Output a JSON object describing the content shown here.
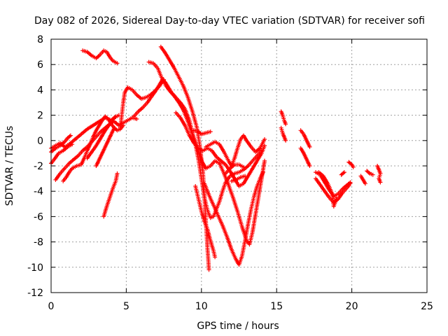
{
  "chart_data": {
    "type": "scatter",
    "title": "Day 082 of 2026, Sidereal Day-to-day VTEC variation (SDTVAR) for receiver sofi",
    "xlabel": "GPS time / hours",
    "ylabel": "SDTVAR / TECUs",
    "xlim": [
      0,
      25
    ],
    "ylim": [
      -12,
      8
    ],
    "xticks": [
      0,
      5,
      10,
      15,
      20,
      25
    ],
    "yticks": [
      -12,
      -10,
      -8,
      -6,
      -4,
      -2,
      0,
      2,
      4,
      6,
      8
    ],
    "xtick_labels": [
      "0",
      "5",
      "10",
      "15",
      "20",
      "25"
    ],
    "ytick_labels": [
      "-12",
      "-10",
      "-8",
      "-6",
      "-4",
      "-2",
      "0",
      "2",
      "4",
      "6",
      "8"
    ],
    "grid": true,
    "marker": "plus",
    "color": "#ff0000",
    "tracks": [
      [
        [
          0.0,
          -0.6
        ],
        [
          0.3,
          -0.4
        ],
        [
          0.6,
          -0.2
        ],
        [
          0.9,
          -0.5
        ],
        [
          1.2,
          -0.3
        ],
        [
          1.5,
          0.0
        ],
        [
          1.8,
          0.3
        ],
        [
          2.1,
          0.6
        ],
        [
          2.4,
          0.9
        ],
        [
          2.8,
          1.2
        ],
        [
          3.2,
          1.5
        ],
        [
          3.6,
          1.8
        ],
        [
          4.0,
          1.6
        ],
        [
          4.3,
          1.9
        ]
      ],
      [
        [
          0.0,
          -0.9
        ],
        [
          0.3,
          -0.6
        ],
        [
          0.6,
          -0.4
        ],
        [
          0.9,
          -0.1
        ],
        [
          1.1,
          0.2
        ],
        [
          1.3,
          0.4
        ]
      ],
      [
        [
          0.0,
          -1.8
        ],
        [
          0.2,
          -1.5
        ],
        [
          0.5,
          -1.0
        ],
        [
          0.8,
          -0.8
        ],
        [
          1.1,
          -0.5
        ],
        [
          1.4,
          -0.3
        ]
      ],
      [
        [
          0.3,
          -3.1
        ],
        [
          0.6,
          -2.6
        ],
        [
          0.9,
          -2.2
        ],
        [
          1.2,
          -1.8
        ],
        [
          1.5,
          -1.5
        ],
        [
          1.8,
          -1.2
        ],
        [
          2.1,
          -0.8
        ],
        [
          2.4,
          -0.5
        ],
        [
          2.7,
          -0.1
        ],
        [
          3.0,
          0.3
        ],
        [
          3.3,
          0.7
        ],
        [
          3.6,
          1.0
        ],
        [
          3.9,
          1.3
        ],
        [
          4.2,
          1.5
        ],
        [
          4.5,
          1.2
        ],
        [
          4.8,
          1.4
        ],
        [
          5.1,
          1.6
        ],
        [
          5.4,
          1.8
        ],
        [
          5.7,
          1.7
        ]
      ],
      [
        [
          0.8,
          -3.2
        ],
        [
          1.0,
          -2.9
        ],
        [
          1.2,
          -2.5
        ],
        [
          1.4,
          -2.2
        ],
        [
          1.7,
          -2.0
        ],
        [
          2.0,
          -1.9
        ],
        [
          2.2,
          -1.4
        ],
        [
          2.4,
          -0.8
        ],
        [
          2.6,
          -0.3
        ],
        [
          2.8,
          0.3
        ],
        [
          3.0,
          0.8
        ],
        [
          3.2,
          1.2
        ],
        [
          3.4,
          1.6
        ],
        [
          3.6,
          1.9
        ],
        [
          3.8,
          1.7
        ],
        [
          4.0,
          1.3
        ],
        [
          4.2,
          1.0
        ],
        [
          4.4,
          0.8
        ],
        [
          4.6,
          0.9
        ],
        [
          4.8,
          1.2
        ]
      ],
      [
        [
          2.4,
          -1.4
        ],
        [
          2.7,
          -0.9
        ],
        [
          3.0,
          -0.4
        ],
        [
          3.3,
          0.2
        ],
        [
          3.6,
          0.8
        ],
        [
          3.9,
          1.3
        ],
        [
          4.2,
          1.8
        ],
        [
          4.5,
          2.0
        ]
      ],
      [
        [
          3.0,
          -2.0
        ],
        [
          3.2,
          -1.5
        ],
        [
          3.4,
          -1.0
        ],
        [
          3.6,
          -0.5
        ],
        [
          3.8,
          0.0
        ],
        [
          4.0,
          0.5
        ],
        [
          4.2,
          1.0
        ]
      ],
      [
        [
          2.1,
          7.1
        ],
        [
          2.4,
          7.0
        ],
        [
          2.7,
          6.7
        ],
        [
          3.0,
          6.5
        ],
        [
          3.2,
          6.7
        ],
        [
          3.5,
          7.1
        ],
        [
          3.7,
          7.0
        ],
        [
          3.9,
          6.6
        ],
        [
          4.1,
          6.3
        ],
        [
          4.4,
          6.1
        ]
      ],
      [
        [
          3.5,
          -6.0
        ],
        [
          3.7,
          -5.2
        ],
        [
          3.9,
          -4.5
        ],
        [
          4.1,
          -3.8
        ],
        [
          4.3,
          -3.2
        ],
        [
          4.4,
          -2.6
        ]
      ],
      [
        [
          4.6,
          1.0
        ],
        [
          4.7,
          2.0
        ],
        [
          4.8,
          3.0
        ],
        [
          4.9,
          3.8
        ],
        [
          5.1,
          4.2
        ],
        [
          5.4,
          4.0
        ],
        [
          5.7,
          3.6
        ],
        [
          6.0,
          3.3
        ],
        [
          6.3,
          3.4
        ],
        [
          6.6,
          3.6
        ],
        [
          6.9,
          3.9
        ],
        [
          7.2,
          4.3
        ],
        [
          7.5,
          4.8
        ]
      ],
      [
        [
          5.5,
          1.9
        ],
        [
          5.8,
          2.3
        ],
        [
          6.1,
          2.6
        ],
        [
          6.4,
          3.0
        ],
        [
          6.7,
          3.5
        ],
        [
          7.0,
          4.0
        ],
        [
          7.2,
          4.4
        ],
        [
          7.4,
          4.8
        ],
        [
          7.6,
          4.6
        ],
        [
          7.8,
          4.2
        ],
        [
          8.0,
          3.8
        ],
        [
          8.3,
          3.4
        ],
        [
          8.6,
          3.0
        ],
        [
          8.9,
          2.5
        ],
        [
          9.2,
          1.6
        ],
        [
          9.4,
          0.6
        ],
        [
          9.6,
          -0.3
        ],
        [
          9.8,
          -1.5
        ],
        [
          10.0,
          -3.0
        ],
        [
          10.2,
          -4.5
        ],
        [
          10.4,
          -5.5
        ],
        [
          10.6,
          -6.1
        ],
        [
          10.8,
          -6.0
        ],
        [
          11.0,
          -5.4
        ],
        [
          11.2,
          -4.8
        ],
        [
          11.4,
          -4.0
        ],
        [
          11.6,
          -3.3
        ],
        [
          11.9,
          -2.8
        ],
        [
          12.2,
          -2.6
        ],
        [
          12.5,
          -2.5
        ],
        [
          12.8,
          -2.3
        ],
        [
          13.1,
          -2.0
        ],
        [
          13.4,
          -1.6
        ],
        [
          13.7,
          -1.2
        ],
        [
          14.0,
          -0.8
        ]
      ],
      [
        [
          6.5,
          6.2
        ],
        [
          6.8,
          6.1
        ],
        [
          7.1,
          5.7
        ],
        [
          7.3,
          5.1
        ],
        [
          7.6,
          4.4
        ],
        [
          7.9,
          3.9
        ],
        [
          8.2,
          3.5
        ],
        [
          8.5,
          3.0
        ],
        [
          8.8,
          2.4
        ],
        [
          9.1,
          1.5
        ],
        [
          9.4,
          0.5
        ],
        [
          9.7,
          -0.5
        ],
        [
          10.0,
          -1.6
        ],
        [
          10.3,
          -2.2
        ],
        [
          10.6,
          -2.0
        ],
        [
          10.9,
          -1.6
        ],
        [
          11.2,
          -1.8
        ],
        [
          11.5,
          -2.6
        ],
        [
          11.8,
          -3.5
        ],
        [
          12.1,
          -4.5
        ],
        [
          12.4,
          -5.6
        ],
        [
          12.7,
          -6.8
        ],
        [
          13.0,
          -7.9
        ],
        [
          13.2,
          -8.2
        ],
        [
          13.4,
          -7.2
        ],
        [
          13.6,
          -5.8
        ],
        [
          13.8,
          -4.4
        ],
        [
          14.0,
          -3.0
        ],
        [
          14.2,
          -1.6
        ]
      ],
      [
        [
          7.3,
          7.4
        ],
        [
          7.6,
          6.9
        ],
        [
          7.9,
          6.3
        ],
        [
          8.2,
          5.7
        ],
        [
          8.5,
          5.0
        ],
        [
          8.8,
          4.3
        ],
        [
          9.1,
          3.4
        ],
        [
          9.4,
          2.3
        ],
        [
          9.7,
          1.0
        ],
        [
          9.9,
          -0.5
        ],
        [
          10.1,
          -2.5
        ],
        [
          10.2,
          -4.5
        ],
        [
          10.3,
          -6.5
        ],
        [
          10.4,
          -8.5
        ],
        [
          10.5,
          -10.2
        ]
      ],
      [
        [
          8.3,
          2.2
        ],
        [
          8.6,
          1.8
        ],
        [
          8.9,
          1.2
        ],
        [
          9.2,
          0.4
        ],
        [
          9.5,
          -0.2
        ],
        [
          9.8,
          -0.6
        ],
        [
          10.1,
          -0.8
        ],
        [
          10.4,
          -0.6
        ],
        [
          10.7,
          -0.8
        ],
        [
          11.0,
          -1.3
        ],
        [
          11.3,
          -1.6
        ],
        [
          11.6,
          -1.9
        ],
        [
          11.9,
          -2.4
        ],
        [
          12.2,
          -3.0
        ],
        [
          12.5,
          -3.6
        ],
        [
          12.8,
          -3.4
        ],
        [
          13.1,
          -2.8
        ],
        [
          13.4,
          -2.2
        ],
        [
          13.7,
          -1.6
        ],
        [
          14.0,
          -1.0
        ],
        [
          14.2,
          -0.4
        ]
      ],
      [
        [
          9.6,
          -3.6
        ],
        [
          9.8,
          -4.6
        ],
        [
          10.0,
          -5.6
        ],
        [
          10.2,
          -6.4
        ],
        [
          10.4,
          -7.0
        ],
        [
          10.6,
          -7.9
        ],
        [
          10.8,
          -8.7
        ],
        [
          10.9,
          -9.2
        ]
      ],
      [
        [
          10.3,
          -0.5
        ],
        [
          10.6,
          -0.3
        ],
        [
          10.9,
          -0.1
        ],
        [
          11.2,
          -0.3
        ],
        [
          11.5,
          -0.9
        ],
        [
          11.8,
          -1.6
        ],
        [
          12.0,
          -2.0
        ],
        [
          12.2,
          -1.4
        ],
        [
          12.4,
          -0.6
        ],
        [
          12.6,
          0.1
        ],
        [
          12.8,
          0.4
        ],
        [
          13.0,
          0.0
        ],
        [
          13.3,
          -0.5
        ],
        [
          13.6,
          -0.9
        ],
        [
          13.9,
          -0.6
        ],
        [
          14.2,
          0.1
        ]
      ],
      [
        [
          9.5,
          0.8
        ],
        [
          9.8,
          0.7
        ],
        [
          10.0,
          0.5
        ],
        [
          10.3,
          0.6
        ],
        [
          10.6,
          0.7
        ]
      ],
      [
        [
          10.2,
          -3.4
        ],
        [
          10.5,
          -4.3
        ],
        [
          10.8,
          -5.1
        ],
        [
          11.1,
          -5.9
        ],
        [
          11.4,
          -6.7
        ],
        [
          11.7,
          -7.6
        ],
        [
          12.0,
          -8.6
        ],
        [
          12.3,
          -9.4
        ],
        [
          12.5,
          -9.8
        ],
        [
          12.7,
          -9.1
        ],
        [
          12.9,
          -7.9
        ],
        [
          13.1,
          -6.6
        ],
        [
          13.3,
          -5.4
        ],
        [
          13.5,
          -4.4
        ],
        [
          13.7,
          -3.6
        ],
        [
          13.9,
          -3.0
        ],
        [
          14.1,
          -2.5
        ]
      ],
      [
        [
          11.6,
          -2.6
        ],
        [
          11.9,
          -2.2
        ],
        [
          12.2,
          -1.9
        ],
        [
          12.5,
          -1.9
        ],
        [
          12.8,
          -2.1
        ]
      ],
      [
        [
          12.0,
          -3.2
        ],
        [
          12.3,
          -3.1
        ],
        [
          12.6,
          -2.9
        ],
        [
          12.9,
          -2.8
        ]
      ],
      [
        [
          15.3,
          2.3
        ],
        [
          15.4,
          2.0
        ],
        [
          15.5,
          1.6
        ],
        [
          15.6,
          1.3
        ]
      ],
      [
        [
          15.3,
          1.0
        ],
        [
          15.4,
          0.6
        ],
        [
          15.5,
          0.3
        ],
        [
          15.6,
          0.0
        ]
      ],
      [
        [
          16.6,
          0.8
        ],
        [
          16.8,
          0.5
        ],
        [
          17.0,
          0.0
        ],
        [
          17.2,
          -0.5
        ]
      ],
      [
        [
          16.6,
          -0.6
        ],
        [
          16.8,
          -1.0
        ],
        [
          17.0,
          -1.5
        ],
        [
          17.2,
          -2.0
        ]
      ],
      [
        [
          17.6,
          -2.5
        ],
        [
          17.9,
          -2.7
        ],
        [
          18.2,
          -3.3
        ],
        [
          18.5,
          -3.9
        ],
        [
          18.8,
          -4.4
        ],
        [
          19.1,
          -4.2
        ],
        [
          19.4,
          -3.8
        ],
        [
          19.7,
          -3.5
        ],
        [
          19.9,
          -3.3
        ]
      ],
      [
        [
          17.6,
          -3.0
        ],
        [
          17.9,
          -3.5
        ],
        [
          18.2,
          -4.0
        ],
        [
          18.5,
          -4.5
        ],
        [
          18.8,
          -4.9
        ],
        [
          19.1,
          -4.6
        ],
        [
          19.4,
          -4.1
        ],
        [
          19.7,
          -3.7
        ],
        [
          19.9,
          -3.4
        ]
      ],
      [
        [
          17.8,
          -2.5
        ],
        [
          18.1,
          -2.8
        ],
        [
          18.4,
          -3.4
        ],
        [
          18.7,
          -4.2
        ],
        [
          18.8,
          -5.2
        ],
        [
          19.0,
          -4.5
        ]
      ],
      [
        [
          19.3,
          -2.7
        ],
        [
          19.5,
          -2.5
        ]
      ],
      [
        [
          19.8,
          -1.7
        ],
        [
          20.0,
          -1.9
        ],
        [
          20.1,
          -2.1
        ]
      ],
      [
        [
          20.6,
          -2.8
        ],
        [
          20.7,
          -3.0
        ],
        [
          20.8,
          -3.2
        ],
        [
          20.9,
          -3.4
        ]
      ],
      [
        [
          21.0,
          -2.4
        ],
        [
          21.2,
          -2.6
        ],
        [
          21.4,
          -2.7
        ]
      ],
      [
        [
          21.7,
          -2.0
        ],
        [
          21.8,
          -2.3
        ],
        [
          21.9,
          -2.6
        ],
        [
          21.8,
          -3.0
        ],
        [
          21.9,
          -3.3
        ]
      ]
    ]
  }
}
